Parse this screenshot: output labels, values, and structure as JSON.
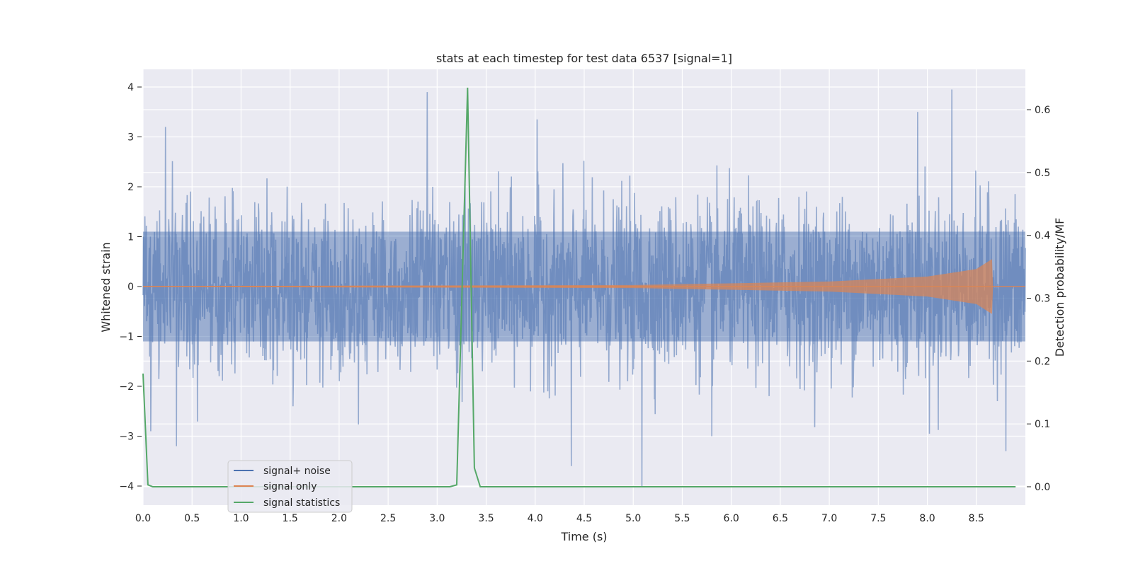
{
  "chart_data": {
    "type": "line",
    "title": "stats at each timestep for test data 6537 [signal=1]",
    "xlabel": "Time (s)",
    "ylabel": "Whitened strain",
    "y2label": "Detection probability/MF",
    "xlim": [
      0,
      9.0
    ],
    "ylim": [
      -4.4,
      4.35
    ],
    "y2lim": [
      -0.03,
      0.66
    ],
    "x_ticks": [
      "0.0",
      "0.5",
      "1.0",
      "1.5",
      "2.0",
      "2.5",
      "3.0",
      "3.5",
      "4.0",
      "4.5",
      "5.0",
      "5.5",
      "6.0",
      "6.5",
      "7.0",
      "7.5",
      "8.0",
      "8.5"
    ],
    "y_ticks": [
      "4",
      "3",
      "2",
      "1",
      "0",
      "−1",
      "−2",
      "−3",
      "−4"
    ],
    "y2_ticks": [
      "0.6",
      "0.5",
      "0.4",
      "0.3",
      "0.2",
      "0.1",
      "0.0"
    ],
    "grid": true,
    "legend_position": "lower-left",
    "series": [
      {
        "name": "signal+ noise",
        "color": "#4c72b0",
        "axis": "left",
        "description_samples": "dense noise, envelope approx ±1.2 typical, spikes to ±3 to ±4",
        "spikes": [
          {
            "x": 0.23,
            "y": 3.2
          },
          {
            "x": 2.9,
            "y": 3.9
          },
          {
            "x": 8.25,
            "y": 3.95
          },
          {
            "x": 7.9,
            "y": 3.5
          },
          {
            "x": 4.02,
            "y": 3.35
          },
          {
            "x": 5.09,
            "y": -4.0
          },
          {
            "x": 4.37,
            "y": -3.6
          },
          {
            "x": 0.34,
            "y": -3.2
          },
          {
            "x": 8.8,
            "y": -3.3
          },
          {
            "x": 0.08,
            "y": -2.9
          },
          {
            "x": 8.02,
            "y": -2.95
          },
          {
            "x": 5.8,
            "y": -3.0
          }
        ]
      },
      {
        "name": "signal only",
        "color": "#dd8452",
        "axis": "left",
        "envelope": [
          [
            0,
            0.01
          ],
          [
            5.0,
            0.03
          ],
          [
            7.0,
            0.1
          ],
          [
            8.0,
            0.2
          ],
          [
            8.5,
            0.35
          ],
          [
            8.66,
            0.55
          ],
          [
            8.67,
            0.0
          ],
          [
            9.0,
            0.0
          ]
        ]
      },
      {
        "name": "signal statistics",
        "color": "#55a868",
        "axis": "right",
        "x": [
          0.0,
          0.05,
          0.1,
          0.15,
          0.5,
          1.0,
          1.5,
          2.0,
          2.5,
          3.0,
          3.13,
          3.2,
          3.31,
          3.38,
          3.44,
          4.0,
          5.0,
          6.0,
          7.0,
          8.0,
          8.9
        ],
        "y": [
          0.18,
          0.003,
          0.0,
          0.0,
          0.0,
          0.0,
          0.0,
          0.0,
          0.0,
          0.0,
          0.0,
          0.003,
          0.635,
          0.03,
          0.0,
          0.0,
          0.0,
          0.0,
          0.0,
          0.0,
          0.0
        ]
      }
    ]
  }
}
